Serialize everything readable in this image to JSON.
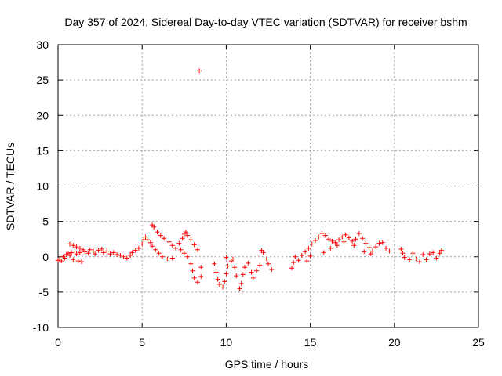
{
  "chart_data": {
    "type": "scatter",
    "title": "Day 357 of 2024, Sidereal Day-to-day VTEC variation (SDTVAR) for receiver bshm",
    "xlabel": "GPS time / hours",
    "ylabel": "SDTVAR / TECUs",
    "xlim": [
      0,
      25
    ],
    "ylim": [
      -10,
      30
    ],
    "xticks": [
      0,
      5,
      10,
      15,
      20,
      25
    ],
    "yticks": [
      -10,
      -5,
      0,
      5,
      10,
      15,
      20,
      25,
      30
    ],
    "grid": true,
    "marker": "+",
    "color": "#ff0000",
    "series": [
      {
        "name": "SDTVAR",
        "points": [
          [
            0.0,
            -0.5
          ],
          [
            0.1,
            -0.3
          ],
          [
            0.2,
            -0.6
          ],
          [
            0.3,
            0.0
          ],
          [
            0.4,
            -0.2
          ],
          [
            0.5,
            0.3
          ],
          [
            0.6,
            0.5
          ],
          [
            0.7,
            0.2
          ],
          [
            0.8,
            0.6
          ],
          [
            0.9,
            -0.4
          ],
          [
            1.0,
            0.8
          ],
          [
            1.1,
            0.4
          ],
          [
            1.2,
            -0.6
          ],
          [
            1.3,
            0.6
          ],
          [
            1.4,
            -0.7
          ],
          [
            0.7,
            1.8
          ],
          [
            0.9,
            1.6
          ],
          [
            1.1,
            1.4
          ],
          [
            1.3,
            1.2
          ],
          [
            1.5,
            1.0
          ],
          [
            1.6,
            0.7
          ],
          [
            1.8,
            0.5
          ],
          [
            1.9,
            1.0
          ],
          [
            2.1,
            0.8
          ],
          [
            2.2,
            0.4
          ],
          [
            2.4,
            0.9
          ],
          [
            2.6,
            1.1
          ],
          [
            2.7,
            0.6
          ],
          [
            2.9,
            0.8
          ],
          [
            3.1,
            0.4
          ],
          [
            3.3,
            0.6
          ],
          [
            3.5,
            0.3
          ],
          [
            3.7,
            0.2
          ],
          [
            3.9,
            0.0
          ],
          [
            4.1,
            -0.2
          ],
          [
            4.3,
            0.2
          ],
          [
            4.4,
            0.6
          ],
          [
            4.6,
            0.9
          ],
          [
            4.8,
            1.2
          ],
          [
            5.0,
            1.8
          ],
          [
            5.1,
            2.4
          ],
          [
            5.2,
            2.8
          ],
          [
            5.3,
            2.4
          ],
          [
            5.5,
            2.0
          ],
          [
            5.6,
            1.5
          ],
          [
            5.8,
            1.0
          ],
          [
            6.0,
            0.5
          ],
          [
            6.2,
            0.0
          ],
          [
            6.5,
            -0.3
          ],
          [
            6.8,
            -0.2
          ],
          [
            5.6,
            4.5
          ],
          [
            5.7,
            4.2
          ],
          [
            5.9,
            3.5
          ],
          [
            6.1,
            3.0
          ],
          [
            6.3,
            2.6
          ],
          [
            6.6,
            2.1
          ],
          [
            6.8,
            1.6
          ],
          [
            7.0,
            1.2
          ],
          [
            7.2,
            1.9
          ],
          [
            7.4,
            2.6
          ],
          [
            7.5,
            3.2
          ],
          [
            7.6,
            3.5
          ],
          [
            7.7,
            3.0
          ],
          [
            7.9,
            2.4
          ],
          [
            8.1,
            1.7
          ],
          [
            8.3,
            1.0
          ],
          [
            7.3,
            1.0
          ],
          [
            7.5,
            0.5
          ],
          [
            7.7,
            0.0
          ],
          [
            7.9,
            -1.0
          ],
          [
            8.0,
            -2.0
          ],
          [
            8.1,
            -3.0
          ],
          [
            8.3,
            -3.6
          ],
          [
            8.5,
            -2.8
          ],
          [
            8.5,
            -1.5
          ],
          [
            8.4,
            26.3
          ],
          [
            9.3,
            -1.0
          ],
          [
            9.4,
            -2.2
          ],
          [
            9.5,
            -3.2
          ],
          [
            9.6,
            -3.9
          ],
          [
            9.8,
            -4.3
          ],
          [
            9.9,
            -3.5
          ],
          [
            10.0,
            -2.4
          ],
          [
            10.1,
            -1.3
          ],
          [
            10.3,
            -0.6
          ],
          [
            10.5,
            -1.5
          ],
          [
            10.6,
            -2.7
          ],
          [
            10.8,
            -4.5
          ],
          [
            10.9,
            -3.8
          ],
          [
            11.0,
            -2.5
          ],
          [
            11.1,
            -1.5
          ],
          [
            11.3,
            -0.9
          ],
          [
            11.5,
            -2.2
          ],
          [
            11.6,
            -3.0
          ],
          [
            11.8,
            -2.0
          ],
          [
            12.0,
            -1.2
          ],
          [
            12.1,
            0.9
          ],
          [
            12.2,
            0.6
          ],
          [
            12.4,
            -0.3
          ],
          [
            12.5,
            -1.0
          ],
          [
            12.7,
            -1.8
          ],
          [
            10.0,
            -0.1
          ],
          [
            10.4,
            -0.3
          ],
          [
            13.9,
            -1.6
          ],
          [
            14.0,
            -0.8
          ],
          [
            14.1,
            0.0
          ],
          [
            14.3,
            -0.5
          ],
          [
            14.5,
            0.2
          ],
          [
            14.7,
            0.7
          ],
          [
            14.9,
            1.2
          ],
          [
            15.1,
            1.8
          ],
          [
            15.3,
            2.3
          ],
          [
            15.5,
            2.8
          ],
          [
            15.7,
            3.3
          ],
          [
            15.9,
            3.0
          ],
          [
            16.1,
            2.5
          ],
          [
            16.3,
            2.2
          ],
          [
            16.5,
            2.0
          ],
          [
            16.7,
            2.4
          ],
          [
            16.9,
            2.8
          ],
          [
            17.1,
            3.1
          ],
          [
            17.3,
            2.7
          ],
          [
            17.5,
            2.2
          ],
          [
            17.7,
            2.5
          ],
          [
            17.9,
            3.3
          ],
          [
            18.1,
            2.6
          ],
          [
            18.3,
            1.9
          ],
          [
            18.5,
            1.3
          ],
          [
            18.7,
            0.8
          ],
          [
            18.9,
            1.4
          ],
          [
            19.1,
            1.9
          ],
          [
            19.3,
            2.0
          ],
          [
            19.5,
            1.2
          ],
          [
            19.7,
            0.8
          ],
          [
            15.8,
            0.6
          ],
          [
            16.2,
            1.2
          ],
          [
            16.6,
            1.6
          ],
          [
            17.0,
            2.1
          ],
          [
            17.6,
            1.6
          ],
          [
            18.2,
            0.7
          ],
          [
            18.6,
            0.4
          ],
          [
            14.8,
            -0.6
          ],
          [
            15.0,
            0.1
          ],
          [
            20.4,
            1.1
          ],
          [
            20.5,
            0.5
          ],
          [
            20.6,
            -0.1
          ],
          [
            20.9,
            -0.4
          ],
          [
            21.1,
            0.5
          ],
          [
            21.3,
            -0.3
          ],
          [
            21.5,
            -0.7
          ],
          [
            21.7,
            0.3
          ],
          [
            21.9,
            -0.4
          ],
          [
            22.1,
            0.4
          ],
          [
            22.3,
            0.6
          ],
          [
            22.5,
            -0.2
          ],
          [
            22.7,
            0.5
          ],
          [
            22.8,
            0.9
          ]
        ]
      }
    ]
  }
}
